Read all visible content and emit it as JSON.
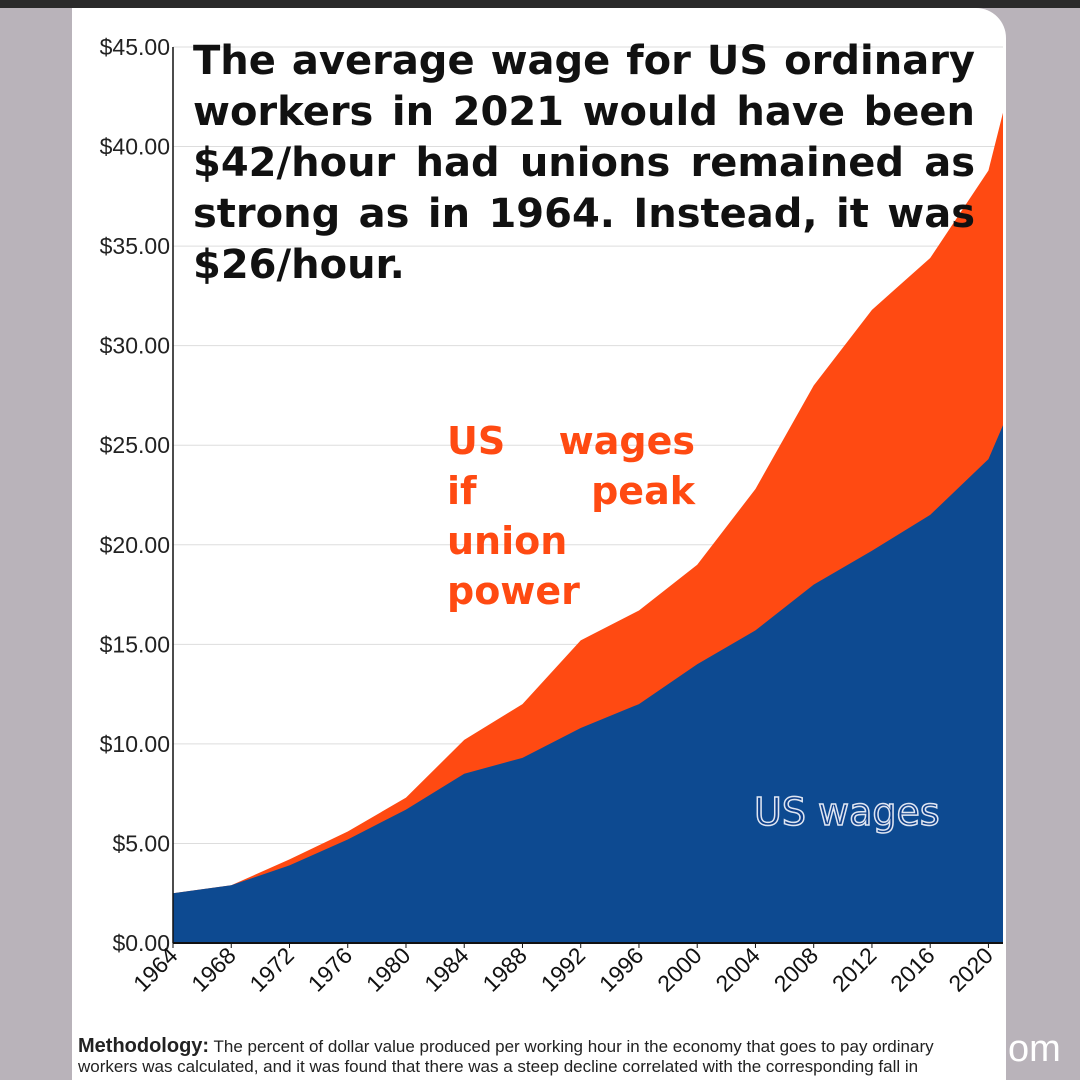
{
  "chart_data": {
    "type": "area",
    "title": "The average wage for US ordinary workers in 2021 would have been $42/hour had unions remained as strong as in 1964. Instead, it was $26/hour.",
    "x": [
      1964,
      1968,
      1972,
      1976,
      1980,
      1984,
      1988,
      1992,
      1996,
      2000,
      2004,
      2008,
      2012,
      2016,
      2020,
      2021
    ],
    "series": [
      {
        "name": "US wages if peak union power",
        "color": "#ff4a12",
        "values": [
          2.5,
          2.9,
          4.2,
          5.6,
          7.3,
          10.2,
          12.0,
          15.2,
          16.7,
          19.0,
          22.8,
          28.0,
          31.8,
          34.4,
          38.8,
          41.7
        ]
      },
      {
        "name": "US wages",
        "color": "#0d4a91",
        "values": [
          2.5,
          2.9,
          3.9,
          5.2,
          6.7,
          8.5,
          9.3,
          10.8,
          12.0,
          14.0,
          15.7,
          18.0,
          19.7,
          21.5,
          24.3,
          26.0
        ]
      }
    ],
    "xlim": [
      1964,
      2021
    ],
    "xticks": [
      1964,
      1968,
      1972,
      1976,
      1980,
      1984,
      1988,
      1992,
      1996,
      2000,
      2004,
      2008,
      2012,
      2016,
      2020
    ],
    "ylim": [
      0,
      45
    ],
    "yticks": [
      {
        "value": 0,
        "label": "$0.00"
      },
      {
        "value": 5,
        "label": "$5.00"
      },
      {
        "value": 10,
        "label": "$10.00"
      },
      {
        "value": 15,
        "label": "$15.00"
      },
      {
        "value": 20,
        "label": "$20.00"
      },
      {
        "value": 25,
        "label": "$25.00"
      },
      {
        "value": 30,
        "label": "$30.00"
      },
      {
        "value": 35,
        "label": "$35.00"
      },
      {
        "value": 40,
        "label": "$40.00"
      },
      {
        "value": 45,
        "label": "$45.00"
      }
    ],
    "grid": true,
    "footnote_label": "Methodology:",
    "footnote_lines": [
      "The percent of dollar value produced per working hour in the economy that goes to pay ordinary",
      "workers was calculated, and it was found that there was a steep decline correlated with the corresponding fall in"
    ],
    "watermark": "om"
  }
}
